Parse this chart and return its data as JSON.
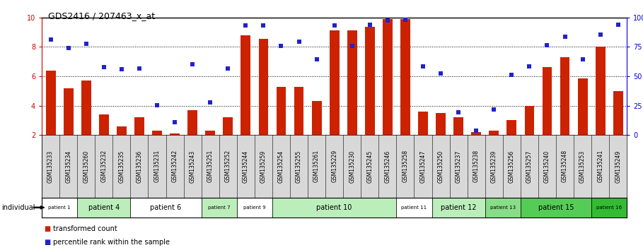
{
  "title": "GDS2416 / 207463_x_at",
  "gsm_labels": [
    "GSM135233",
    "GSM135234",
    "GSM135260",
    "GSM135232",
    "GSM135235",
    "GSM135236",
    "GSM135231",
    "GSM135242",
    "GSM135243",
    "GSM135251",
    "GSM135252",
    "GSM135244",
    "GSM135259",
    "GSM135254",
    "GSM135255",
    "GSM135261",
    "GSM135229",
    "GSM135230",
    "GSM135245",
    "GSM135246",
    "GSM135258",
    "GSM135247",
    "GSM135250",
    "GSM135237",
    "GSM135238",
    "GSM135239",
    "GSM135256",
    "GSM135257",
    "GSM135240",
    "GSM135248",
    "GSM135253",
    "GSM135241",
    "GSM135249"
  ],
  "bar_values": [
    6.4,
    5.2,
    5.7,
    3.4,
    2.6,
    3.2,
    2.3,
    2.1,
    3.7,
    2.3,
    3.2,
    8.8,
    8.55,
    5.3,
    5.3,
    4.3,
    9.1,
    9.1,
    9.35,
    9.9,
    9.9,
    3.6,
    3.5,
    3.2,
    2.2,
    2.3,
    3.0,
    4.0,
    6.6,
    7.3,
    5.85,
    8.0,
    5.0
  ],
  "scatter_values": [
    8.5,
    7.9,
    8.2,
    6.6,
    6.5,
    6.55,
    4.05,
    2.85,
    6.8,
    4.2,
    6.55,
    9.45,
    9.45,
    8.05,
    8.35,
    7.15,
    9.45,
    8.05,
    9.5,
    9.8,
    9.85,
    6.65,
    6.2,
    3.55,
    2.3,
    3.75,
    6.1,
    6.65,
    8.1,
    8.7,
    7.15,
    8.85,
    9.5
  ],
  "bar_color": "#cc2200",
  "scatter_color": "#2222cc",
  "ylim_left": [
    2,
    10
  ],
  "ylim_right": [
    0,
    100
  ],
  "yticks_left": [
    2,
    4,
    6,
    8,
    10
  ],
  "yticks_right": [
    0,
    25,
    50,
    75,
    100
  ],
  "grid_lines": [
    4,
    6,
    8
  ],
  "patients": [
    {
      "label": "patient 1",
      "start": 0,
      "end": 2,
      "color": "#ffffff"
    },
    {
      "label": "patient 4",
      "start": 2,
      "end": 5,
      "color": "#bbeebb"
    },
    {
      "label": "patient 6",
      "start": 5,
      "end": 9,
      "color": "#ffffff"
    },
    {
      "label": "patient 7",
      "start": 9,
      "end": 11,
      "color": "#bbeebb"
    },
    {
      "label": "patient 9",
      "start": 11,
      "end": 13,
      "color": "#ffffff"
    },
    {
      "label": "patient 10",
      "start": 13,
      "end": 20,
      "color": "#bbeebb"
    },
    {
      "label": "patient 11",
      "start": 20,
      "end": 22,
      "color": "#ffffff"
    },
    {
      "label": "patient 12",
      "start": 22,
      "end": 25,
      "color": "#bbeebb"
    },
    {
      "label": "patient 13",
      "start": 25,
      "end": 27,
      "color": "#88dd88"
    },
    {
      "label": "patient 15",
      "start": 27,
      "end": 31,
      "color": "#55cc55"
    },
    {
      "label": "patient 16",
      "start": 31,
      "end": 33,
      "color": "#33bb33"
    }
  ],
  "gsm_cell_color": "#d8d8d8",
  "gsm_cell_edge": "#888888",
  "bar_width": 0.55,
  "scatter_marker_size": 16,
  "left_axis_color": "#cc0000",
  "right_axis_color": "#0000cc",
  "title_fontsize": 9,
  "axis_tick_fontsize": 7,
  "gsm_fontsize": 5.5,
  "patient_fontsize_large": 7,
  "patient_fontsize_small": 5,
  "legend_fontsize": 7
}
